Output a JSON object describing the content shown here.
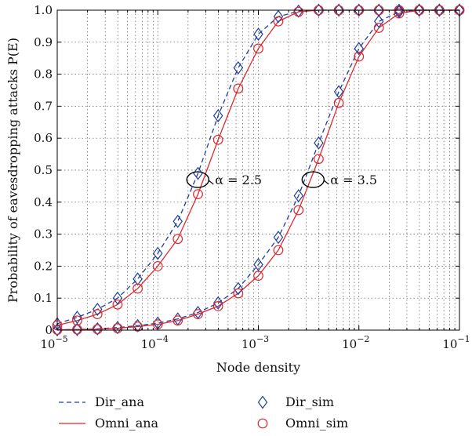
{
  "chart_data": {
    "type": "line",
    "xscale": "log",
    "xlim": [
      1e-05,
      0.1
    ],
    "ylim": [
      0,
      1
    ],
    "xlabel": "Node density",
    "ylabel": "Probability of eavesdropping attacks P(E)",
    "grid": true,
    "x_ticks": [
      {
        "value": 1e-05,
        "base": "10",
        "exp": "−5"
      },
      {
        "value": 0.0001,
        "base": "10",
        "exp": "−4"
      },
      {
        "value": 0.001,
        "base": "10",
        "exp": "−3"
      },
      {
        "value": 0.01,
        "base": "10",
        "exp": "−2"
      },
      {
        "value": 0.1,
        "base": "10",
        "exp": "−1"
      }
    ],
    "y_ticks": [
      {
        "value": 0,
        "label": "0"
      },
      {
        "value": 0.1,
        "label": "0.1"
      },
      {
        "value": 0.2,
        "label": "0.2"
      },
      {
        "value": 0.3,
        "label": "0.3"
      },
      {
        "value": 0.4,
        "label": "0.4"
      },
      {
        "value": 0.5,
        "label": "0.5"
      },
      {
        "value": 0.6,
        "label": "0.6"
      },
      {
        "value": 0.7,
        "label": "0.7"
      },
      {
        "value": 0.8,
        "label": "0.8"
      },
      {
        "value": 0.9,
        "label": "0.9"
      },
      {
        "value": 1.0,
        "label": "1.0"
      }
    ],
    "legend_placement": "bottom",
    "x": [
      1e-05,
      1.58e-05,
      2.51e-05,
      3.98e-05,
      6.31e-05,
      0.0001,
      0.000158,
      0.000251,
      0.000398,
      0.000631,
      0.001,
      0.00158,
      0.00251,
      0.00398,
      0.00631,
      0.01,
      0.0158,
      0.0251,
      0.0398,
      0.0631,
      0.1
    ],
    "series": [
      {
        "name": "Dir_ana",
        "group": "α = 2.5",
        "style": "dashed",
        "color": "#1f3f9e",
        "marker": "none",
        "values": [
          0.02,
          0.04,
          0.065,
          0.1,
          0.16,
          0.24,
          0.34,
          0.49,
          0.67,
          0.82,
          0.925,
          0.98,
          0.997,
          1.0,
          1.0,
          1.0,
          1.0,
          1.0,
          1.0,
          1.0,
          1.0
        ]
      },
      {
        "name": "Omni_ana",
        "group": "α = 2.5",
        "style": "solid",
        "color": "#e0282e",
        "marker": "none",
        "values": [
          0.015,
          0.03,
          0.05,
          0.08,
          0.13,
          0.2,
          0.285,
          0.425,
          0.595,
          0.755,
          0.88,
          0.965,
          0.995,
          1.0,
          1.0,
          1.0,
          1.0,
          1.0,
          1.0,
          1.0,
          1.0
        ]
      },
      {
        "name": "Dir_sim",
        "group": "α = 2.5",
        "style": "none",
        "color": "#1f3f9e",
        "marker": "diamond",
        "values": [
          0.02,
          0.04,
          0.065,
          0.1,
          0.16,
          0.24,
          0.34,
          0.49,
          0.67,
          0.82,
          0.925,
          0.98,
          0.997,
          1.0,
          1.0,
          1.0,
          1.0,
          1.0,
          1.0,
          1.0,
          1.0
        ]
      },
      {
        "name": "Omni_sim",
        "group": "α = 2.5",
        "style": "none",
        "color": "#e0282e",
        "marker": "circle",
        "values": [
          0.015,
          0.03,
          0.05,
          0.08,
          0.13,
          0.2,
          0.285,
          0.425,
          0.595,
          0.755,
          0.88,
          0.965,
          0.995,
          1.0,
          1.0,
          1.0,
          1.0,
          1.0,
          1.0,
          1.0,
          1.0
        ]
      },
      {
        "name": "Dir_ana",
        "group": "α = 3.5",
        "style": "dashed",
        "color": "#1f3f9e",
        "marker": "none",
        "values": [
          0.001,
          0.002,
          0.004,
          0.008,
          0.014,
          0.022,
          0.035,
          0.055,
          0.085,
          0.13,
          0.205,
          0.29,
          0.42,
          0.585,
          0.745,
          0.88,
          0.965,
          0.995,
          1.0,
          1.0,
          1.0
        ]
      },
      {
        "name": "Omni_ana",
        "group": "α = 3.5",
        "style": "solid",
        "color": "#e0282e",
        "marker": "none",
        "values": [
          0.001,
          0.002,
          0.003,
          0.006,
          0.011,
          0.018,
          0.03,
          0.05,
          0.075,
          0.115,
          0.17,
          0.25,
          0.375,
          0.535,
          0.71,
          0.855,
          0.945,
          0.99,
          1.0,
          1.0,
          1.0
        ]
      },
      {
        "name": "Dir_sim",
        "group": "α = 3.5",
        "style": "none",
        "color": "#1f3f9e",
        "marker": "diamond",
        "values": [
          0.001,
          0.002,
          0.004,
          0.008,
          0.014,
          0.022,
          0.035,
          0.055,
          0.085,
          0.13,
          0.205,
          0.29,
          0.42,
          0.585,
          0.745,
          0.88,
          0.965,
          0.995,
          1.0,
          1.0,
          1.0
        ]
      },
      {
        "name": "Omni_sim",
        "group": "α = 3.5",
        "style": "none",
        "color": "#e0282e",
        "marker": "circle",
        "values": [
          0.001,
          0.002,
          0.003,
          0.006,
          0.011,
          0.018,
          0.03,
          0.05,
          0.075,
          0.115,
          0.17,
          0.25,
          0.375,
          0.535,
          0.71,
          0.855,
          0.945,
          0.99,
          1.0,
          1.0,
          1.0
        ]
      }
    ],
    "annotations": [
      {
        "text": "α = 2.5",
        "x": 0.00025,
        "y": 0.49
      },
      {
        "text": "α = 3.5",
        "x": 0.0035,
        "y": 0.49
      }
    ],
    "legend": [
      {
        "label": "Dir_ana",
        "style": "dashed",
        "color": "#1f3f9e",
        "marker": "none"
      },
      {
        "label": "Dir_sim",
        "style": "none",
        "color": "#1f3f9e",
        "marker": "diamond"
      },
      {
        "label": "Omni_ana",
        "style": "solid",
        "color": "#e0282e",
        "marker": "none"
      },
      {
        "label": "Omni_sim",
        "style": "none",
        "color": "#e0282e",
        "marker": "circle"
      }
    ]
  }
}
